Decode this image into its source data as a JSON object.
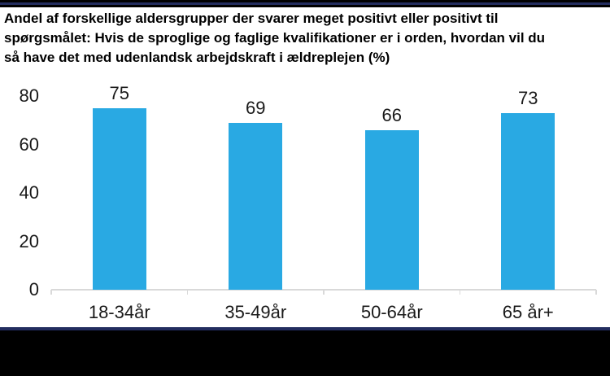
{
  "page": {
    "title_lines": [
      "Andel af forskellige aldersgrupper der svarer meget positivt eller positivt til",
      "spørgsmålet: Hvis de sproglige og faglige kvalifikationer er i orden, hvordan vil du",
      "så have det med udenlandsk arbejdskraft i ældreplejen (%)"
    ]
  },
  "colors": {
    "bar": "#29A9E3",
    "accent_line": "#232D5F",
    "frame": "#000000",
    "axis": "#D9D9D9",
    "label": "#1A1A1A"
  },
  "chart_data": {
    "type": "bar",
    "title": "Andel af forskellige aldersgrupper der svarer meget positivt eller positivt til spørgsmålet: Hvis de sproglige og faglige kvalifikationer er i orden, hvordan vil du så have det med udenlandsk arbejdskraft i ældreplejen (%)",
    "categories": [
      "18-34år",
      "35-49år",
      "50-64år",
      "65 år+"
    ],
    "values": [
      75,
      69,
      66,
      73
    ],
    "xlabel": "",
    "ylabel": "",
    "ylim": [
      0,
      80
    ],
    "yticks": [
      0,
      20,
      40,
      60,
      80
    ],
    "grid": false,
    "legend": false,
    "data_labels": true,
    "bar_color": "#29A9E3"
  }
}
